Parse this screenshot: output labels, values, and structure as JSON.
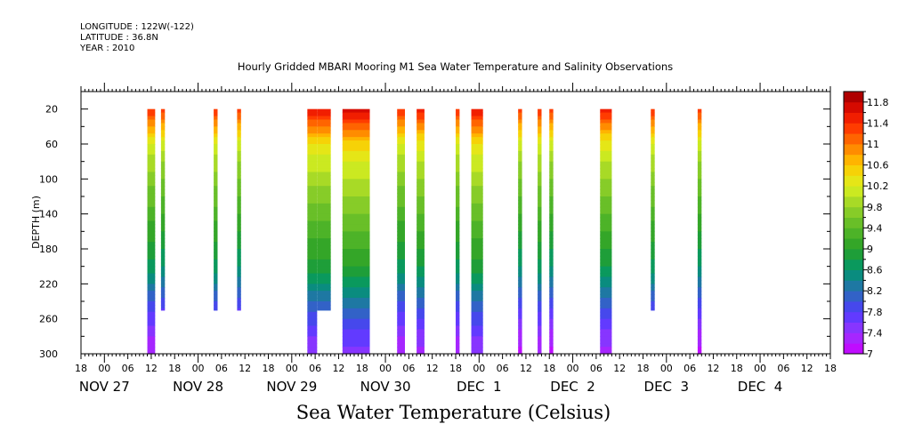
{
  "header": {
    "longitude": "LONGITUDE : 122W(-122)",
    "latitude": "LATITUDE : 36.8N",
    "year": "YEAR : 2010"
  },
  "chart_data": {
    "type": "heatmap",
    "title": "Hourly Gridded MBARI Mooring M1 Sea Water Temperature and Salinity Observations",
    "xlabel": "Sea Water Temperature (Celsius)",
    "ylabel": "DEPTH (m)",
    "x_unit": "hours from NOV 27 00:00, 2010",
    "xlim": [
      -6,
      186
    ],
    "ylim": [
      300,
      0
    ],
    "y_ticks": [
      20,
      60,
      100,
      140,
      180,
      220,
      260,
      300
    ],
    "x_hour_ticks": [
      "18",
      "00",
      "06",
      "12",
      "18",
      "00",
      "06",
      "12",
      "18",
      "00",
      "06",
      "12",
      "18",
      "00",
      "06",
      "12",
      "18",
      "00",
      "06",
      "12",
      "18",
      "00",
      "06",
      "12",
      "18",
      "00",
      "06",
      "12",
      "18",
      "00",
      "06",
      "12",
      "18"
    ],
    "x_day_labels": [
      {
        "label": "NOV 27",
        "hour": 0
      },
      {
        "label": "NOV 28",
        "hour": 24
      },
      {
        "label": "NOV 29",
        "hour": 48
      },
      {
        "label": "NOV 30",
        "hour": 72
      },
      {
        "label": "DEC  1",
        "hour": 96
      },
      {
        "label": "DEC  2",
        "hour": 120
      },
      {
        "label": "DEC  3",
        "hour": 144
      },
      {
        "label": "DEC  4",
        "hour": 168
      }
    ],
    "colorbar": {
      "min": 7,
      "max": 12,
      "step": 0.2,
      "labels": [
        "7",
        "7.4",
        "7.8",
        "8.2",
        "8.6",
        "9",
        "9.4",
        "9.8",
        "10.2",
        "10.6",
        "11",
        "11.4",
        "11.8"
      ]
    },
    "profile": {
      "depth": [
        10,
        20,
        40,
        60,
        80,
        100,
        120,
        140,
        160,
        180,
        200,
        220,
        240,
        260,
        280,
        300
      ],
      "temp": [
        11.6,
        11.4,
        10.8,
        10.2,
        9.9,
        9.7,
        9.5,
        9.3,
        9.1,
        8.9,
        8.7,
        8.4,
        8.0,
        7.7,
        7.4,
        7.2
      ]
    },
    "segments": [
      {
        "start": 11.0,
        "end": 13.0,
        "max_depth": 300,
        "offset": 0.0
      },
      {
        "start": 14.5,
        "end": 15.5,
        "max_depth": 250,
        "offset": -0.1
      },
      {
        "start": 28.0,
        "end": 29.0,
        "max_depth": 250,
        "offset": 0.0
      },
      {
        "start": 34.0,
        "end": 35.0,
        "max_depth": 250,
        "offset": -0.1
      },
      {
        "start": 52.0,
        "end": 54.5,
        "max_depth": 300,
        "offset": 0.2
      },
      {
        "start": 54.5,
        "end": 58.0,
        "max_depth": 250,
        "offset": 0.2
      },
      {
        "start": 61.0,
        "end": 68.0,
        "max_depth": 300,
        "offset": 0.3
      },
      {
        "start": 75.0,
        "end": 77.0,
        "max_depth": 300,
        "offset": 0.0
      },
      {
        "start": 80.0,
        "end": 82.0,
        "max_depth": 300,
        "offset": 0.1
      },
      {
        "start": 90.0,
        "end": 91.0,
        "max_depth": 300,
        "offset": 0.0
      },
      {
        "start": 94.0,
        "end": 97.0,
        "max_depth": 300,
        "offset": 0.2
      },
      {
        "start": 106.0,
        "end": 107.0,
        "max_depth": 300,
        "offset": -0.1
      },
      {
        "start": 111.0,
        "end": 112.0,
        "max_depth": 300,
        "offset": 0.0
      },
      {
        "start": 114.0,
        "end": 115.0,
        "max_depth": 300,
        "offset": -0.1
      },
      {
        "start": 127.0,
        "end": 130.0,
        "max_depth": 300,
        "offset": 0.1
      },
      {
        "start": 140.0,
        "end": 141.0,
        "max_depth": 250,
        "offset": 0.0
      },
      {
        "start": 152.0,
        "end": 153.0,
        "max_depth": 300,
        "offset": -0.1
      }
    ]
  }
}
